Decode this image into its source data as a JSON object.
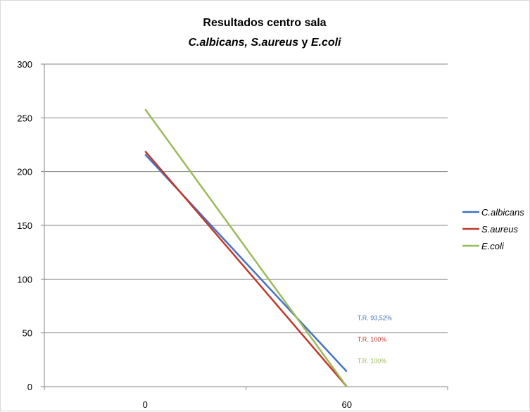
{
  "chart_data": {
    "type": "line",
    "title": "Resultados centro sala",
    "subtitle_parts": [
      {
        "text": "C.albicans, S.aureus",
        "italic": true
      },
      {
        "text": " y ",
        "italic": false
      },
      {
        "text": "E.coli",
        "italic": true
      }
    ],
    "x": [
      "0",
      "60"
    ],
    "ylim": [
      0,
      300
    ],
    "yticks": [
      "0",
      "50",
      "100",
      "150",
      "200",
      "250",
      "300"
    ],
    "grid": true,
    "legend_position": "right",
    "series": [
      {
        "name": "C.albicans",
        "color": "#4472C4",
        "values": [
          216,
          14
        ]
      },
      {
        "name": "S.aureus",
        "color": "#C0392B",
        "values": [
          219,
          0
        ]
      },
      {
        "name": "E.coli",
        "color": "#9BBB59",
        "values": [
          258,
          0
        ]
      }
    ],
    "annotations": [
      {
        "text": "T.R. 93,52%",
        "color": "#4472C4"
      },
      {
        "text": "T.R. 100%",
        "color": "#C0392B"
      },
      {
        "text": "T.R. 100%",
        "color": "#9BBB59"
      }
    ]
  }
}
